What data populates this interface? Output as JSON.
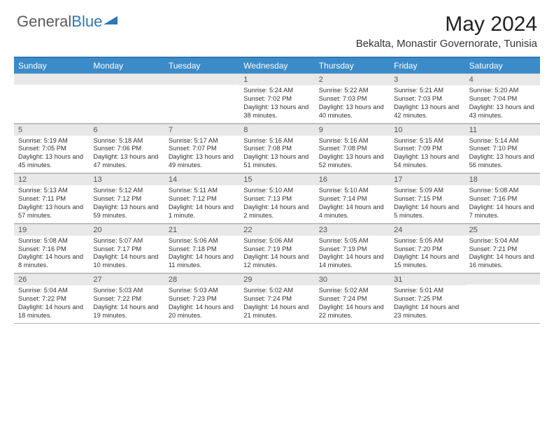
{
  "logo": {
    "text1": "General",
    "text2": "Blue"
  },
  "title": "May 2024",
  "location": "Bekalta, Monastir Governorate, Tunisia",
  "colors": {
    "header_bg": "#3b8bc9",
    "border": "#2a7ab8",
    "daynum_bg": "#e8e8e8"
  },
  "day_names": [
    "Sunday",
    "Monday",
    "Tuesday",
    "Wednesday",
    "Thursday",
    "Friday",
    "Saturday"
  ],
  "weeks": [
    [
      {
        "n": "",
        "sr": "",
        "ss": "",
        "dl": ""
      },
      {
        "n": "",
        "sr": "",
        "ss": "",
        "dl": ""
      },
      {
        "n": "",
        "sr": "",
        "ss": "",
        "dl": ""
      },
      {
        "n": "1",
        "sr": "5:24 AM",
        "ss": "7:02 PM",
        "dl": "13 hours and 38 minutes."
      },
      {
        "n": "2",
        "sr": "5:22 AM",
        "ss": "7:03 PM",
        "dl": "13 hours and 40 minutes."
      },
      {
        "n": "3",
        "sr": "5:21 AM",
        "ss": "7:03 PM",
        "dl": "13 hours and 42 minutes."
      },
      {
        "n": "4",
        "sr": "5:20 AM",
        "ss": "7:04 PM",
        "dl": "13 hours and 43 minutes."
      }
    ],
    [
      {
        "n": "5",
        "sr": "5:19 AM",
        "ss": "7:05 PM",
        "dl": "13 hours and 45 minutes."
      },
      {
        "n": "6",
        "sr": "5:18 AM",
        "ss": "7:06 PM",
        "dl": "13 hours and 47 minutes."
      },
      {
        "n": "7",
        "sr": "5:17 AM",
        "ss": "7:07 PM",
        "dl": "13 hours and 49 minutes."
      },
      {
        "n": "8",
        "sr": "5:16 AM",
        "ss": "7:08 PM",
        "dl": "13 hours and 51 minutes."
      },
      {
        "n": "9",
        "sr": "5:16 AM",
        "ss": "7:08 PM",
        "dl": "13 hours and 52 minutes."
      },
      {
        "n": "10",
        "sr": "5:15 AM",
        "ss": "7:09 PM",
        "dl": "13 hours and 54 minutes."
      },
      {
        "n": "11",
        "sr": "5:14 AM",
        "ss": "7:10 PM",
        "dl": "13 hours and 56 minutes."
      }
    ],
    [
      {
        "n": "12",
        "sr": "5:13 AM",
        "ss": "7:11 PM",
        "dl": "13 hours and 57 minutes."
      },
      {
        "n": "13",
        "sr": "5:12 AM",
        "ss": "7:12 PM",
        "dl": "13 hours and 59 minutes."
      },
      {
        "n": "14",
        "sr": "5:11 AM",
        "ss": "7:12 PM",
        "dl": "14 hours and 1 minute."
      },
      {
        "n": "15",
        "sr": "5:10 AM",
        "ss": "7:13 PM",
        "dl": "14 hours and 2 minutes."
      },
      {
        "n": "16",
        "sr": "5:10 AM",
        "ss": "7:14 PM",
        "dl": "14 hours and 4 minutes."
      },
      {
        "n": "17",
        "sr": "5:09 AM",
        "ss": "7:15 PM",
        "dl": "14 hours and 5 minutes."
      },
      {
        "n": "18",
        "sr": "5:08 AM",
        "ss": "7:16 PM",
        "dl": "14 hours and 7 minutes."
      }
    ],
    [
      {
        "n": "19",
        "sr": "5:08 AM",
        "ss": "7:16 PM",
        "dl": "14 hours and 8 minutes."
      },
      {
        "n": "20",
        "sr": "5:07 AM",
        "ss": "7:17 PM",
        "dl": "14 hours and 10 minutes."
      },
      {
        "n": "21",
        "sr": "5:06 AM",
        "ss": "7:18 PM",
        "dl": "14 hours and 11 minutes."
      },
      {
        "n": "22",
        "sr": "5:06 AM",
        "ss": "7:19 PM",
        "dl": "14 hours and 12 minutes."
      },
      {
        "n": "23",
        "sr": "5:05 AM",
        "ss": "7:19 PM",
        "dl": "14 hours and 14 minutes."
      },
      {
        "n": "24",
        "sr": "5:05 AM",
        "ss": "7:20 PM",
        "dl": "14 hours and 15 minutes."
      },
      {
        "n": "25",
        "sr": "5:04 AM",
        "ss": "7:21 PM",
        "dl": "14 hours and 16 minutes."
      }
    ],
    [
      {
        "n": "26",
        "sr": "5:04 AM",
        "ss": "7:22 PM",
        "dl": "14 hours and 18 minutes."
      },
      {
        "n": "27",
        "sr": "5:03 AM",
        "ss": "7:22 PM",
        "dl": "14 hours and 19 minutes."
      },
      {
        "n": "28",
        "sr": "5:03 AM",
        "ss": "7:23 PM",
        "dl": "14 hours and 20 minutes."
      },
      {
        "n": "29",
        "sr": "5:02 AM",
        "ss": "7:24 PM",
        "dl": "14 hours and 21 minutes."
      },
      {
        "n": "30",
        "sr": "5:02 AM",
        "ss": "7:24 PM",
        "dl": "14 hours and 22 minutes."
      },
      {
        "n": "31",
        "sr": "5:01 AM",
        "ss": "7:25 PM",
        "dl": "14 hours and 23 minutes."
      },
      {
        "n": "",
        "sr": "",
        "ss": "",
        "dl": ""
      }
    ]
  ],
  "labels": {
    "sunrise": "Sunrise:",
    "sunset": "Sunset:",
    "daylight": "Daylight:"
  }
}
